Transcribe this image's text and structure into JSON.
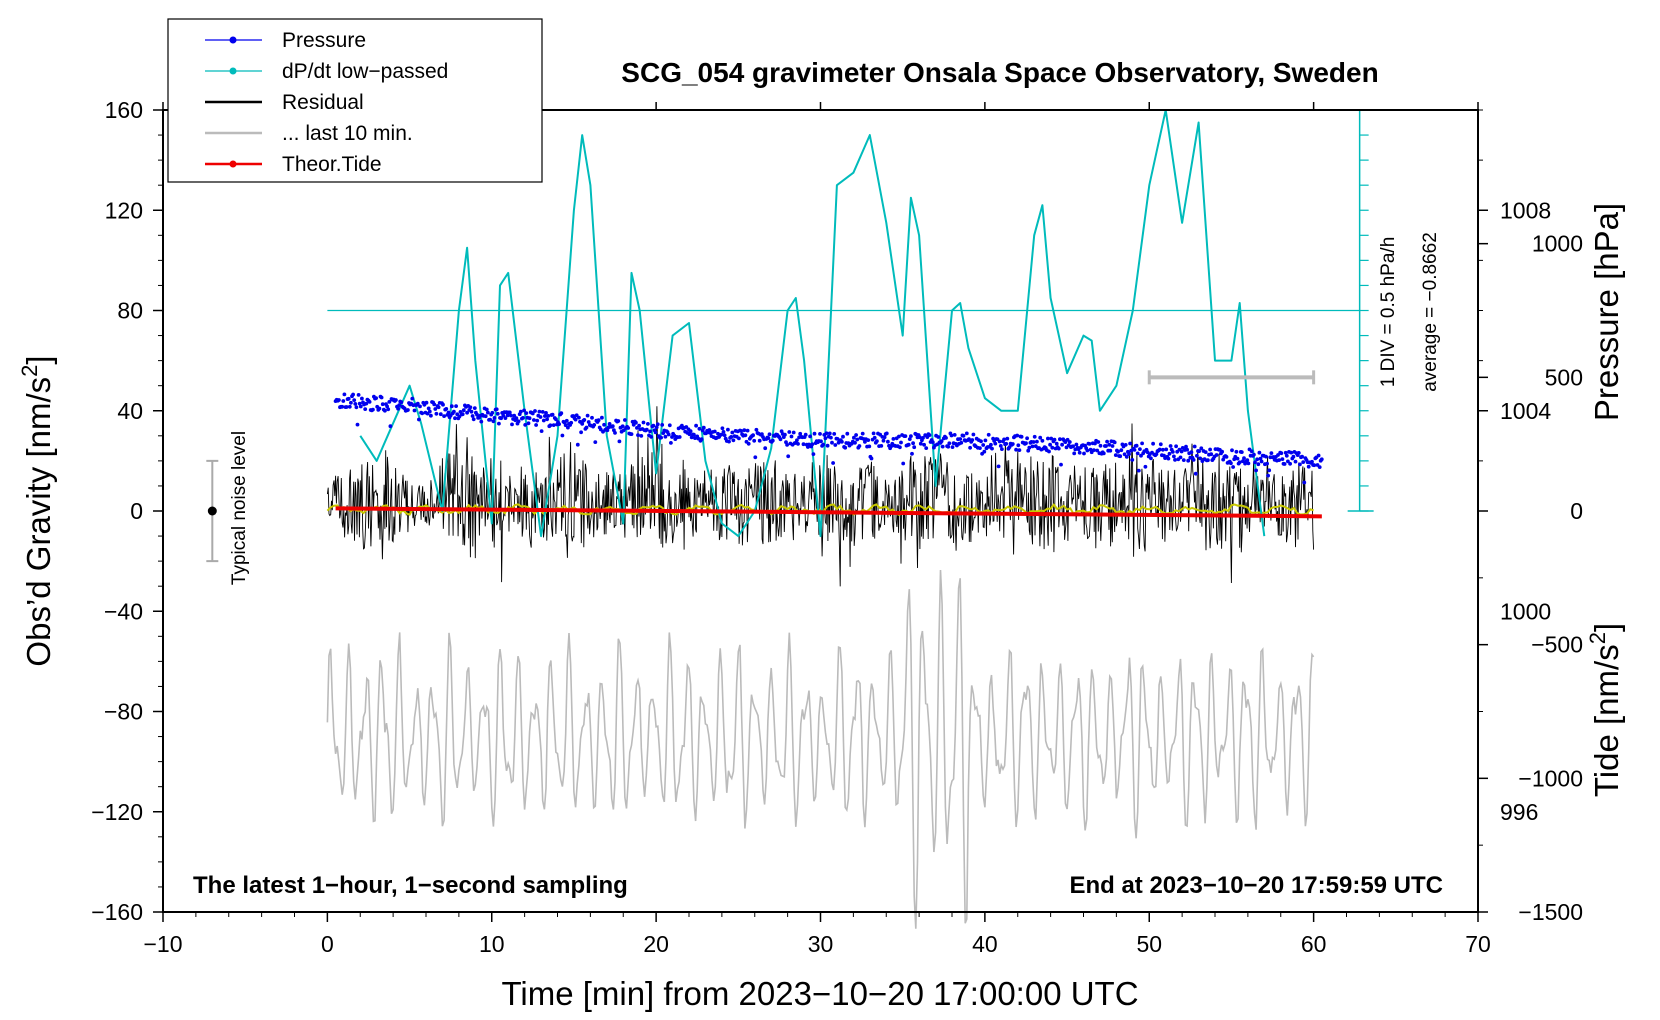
{
  "chart_data": {
    "type": "line",
    "title": "SCG_054 gravimeter Onsala Space Observatory, Sweden",
    "xlabel": "Time [min] from 2023−10−20 17:00:00 UTC",
    "ylabel_left_main": "Obs’d Gravity [nm/s",
    "ylabel_left_sup": "2",
    "ylabel_left_tail": "]",
    "ylabel_right_pressure": "Pressure [hPa]",
    "ylabel_right_tide_main": "Tide [nm/s",
    "ylabel_right_tide_sup": "2",
    "ylabel_right_tide_tail": "]",
    "xlim": [
      -10,
      70
    ],
    "ylim": [
      -160,
      160
    ],
    "pressure_lim": [
      994,
      1010
    ],
    "tide_lim": [
      -1500,
      1500
    ],
    "x_ticks": [
      "−10",
      "0",
      "10",
      "20",
      "30",
      "40",
      "50",
      "60",
      "70"
    ],
    "x_tick_values": [
      -10,
      0,
      10,
      20,
      30,
      40,
      50,
      60,
      70
    ],
    "y_ticks": [
      "160",
      "120",
      "80",
      "40",
      "0",
      "−40",
      "−80",
      "−120",
      "−160"
    ],
    "y_tick_values": [
      160,
      120,
      80,
      40,
      0,
      -40,
      -80,
      -120,
      -160
    ],
    "pressure_ticks": [
      "1008",
      "1004",
      "1000",
      "996"
    ],
    "pressure_tick_values": [
      1008,
      1004,
      1000,
      996
    ],
    "tide_ticks": [
      "1000",
      "500",
      "0",
      "−500",
      "−1000",
      "−1500"
    ],
    "tide_tick_values": [
      1000,
      500,
      0,
      -500,
      -1000,
      -1500
    ],
    "legend": [
      {
        "label": "Pressure",
        "color": "#0000ee",
        "marker": true
      },
      {
        "label": "dP/dt low−passed",
        "color": "#00bbbb",
        "marker": true
      },
      {
        "label": "Residual",
        "color": "#000000",
        "marker": false
      },
      {
        "label": "... last 10 min.",
        "color": "#bbbbbb",
        "marker": false
      },
      {
        "label": "Theor.Tide",
        "color": "#ee0000",
        "marker": true
      }
    ],
    "note_left": "The latest 1−hour, 1−second sampling",
    "note_right": "End at 2023−10−20 17:59:59 UTC",
    "noise_label": "Typical noise level",
    "noise_bar": {
      "x": -7,
      "center": 0,
      "half": 20
    },
    "div_label": "1 DIV = 0.5 hPa/h",
    "average_label": "average = −0.8662",
    "dpdt_zero_gravity": 80,
    "tide_shift_bar": {
      "x_start": 50,
      "x_end": 60,
      "tide": 500
    },
    "series": {
      "pressure": {
        "name": "Pressure",
        "unit": "hPa",
        "x": [
          0.5,
          5,
          10,
          15,
          20,
          25,
          30,
          35,
          40,
          45,
          50,
          55,
          60.5
        ],
        "values": [
          1004.2,
          1004.1,
          1003.9,
          1003.8,
          1003.6,
          1003.5,
          1003.4,
          1003.4,
          1003.4,
          1003.3,
          1003.2,
          1003.1,
          1003.0
        ]
      },
      "dpdt_lowpassed": {
        "name": "dP/dt low−passed",
        "unit": "gravity-axis units",
        "x": [
          2,
          3,
          4,
          5,
          5.7,
          7,
          8,
          8.5,
          9,
          10,
          10.5,
          11,
          12,
          13,
          14,
          15,
          15.5,
          16,
          17,
          18,
          18.5,
          19,
          20,
          21,
          22,
          23,
          24,
          25,
          26,
          27,
          28,
          28.5,
          29,
          30,
          31,
          32,
          33,
          34,
          35,
          35.5,
          36,
          37,
          38,
          38.5,
          39,
          40,
          41,
          42,
          43,
          43.5,
          44,
          45,
          46,
          46.5,
          47,
          48,
          49,
          50,
          51,
          52,
          53,
          54,
          55,
          55.5,
          56,
          57
        ],
        "values": [
          30,
          20,
          35,
          50,
          35,
          0,
          80,
          105,
          60,
          -5,
          90,
          95,
          40,
          -10,
          30,
          120,
          150,
          130,
          30,
          -5,
          95,
          80,
          15,
          70,
          75,
          20,
          -5,
          -10,
          0,
          25,
          80,
          85,
          60,
          -10,
          130,
          135,
          150,
          115,
          70,
          125,
          110,
          10,
          80,
          83,
          65,
          45,
          40,
          40,
          110,
          122,
          85,
          55,
          70,
          68,
          40,
          50,
          80,
          130,
          165,
          115,
          155,
          60,
          60,
          83,
          40,
          -10
        ]
      },
      "theoretical_tide": {
        "name": "Theor.Tide",
        "unit": "nm/s2",
        "x": [
          0.5,
          60.5
        ],
        "values": [
          10,
          -20
        ]
      }
    }
  }
}
